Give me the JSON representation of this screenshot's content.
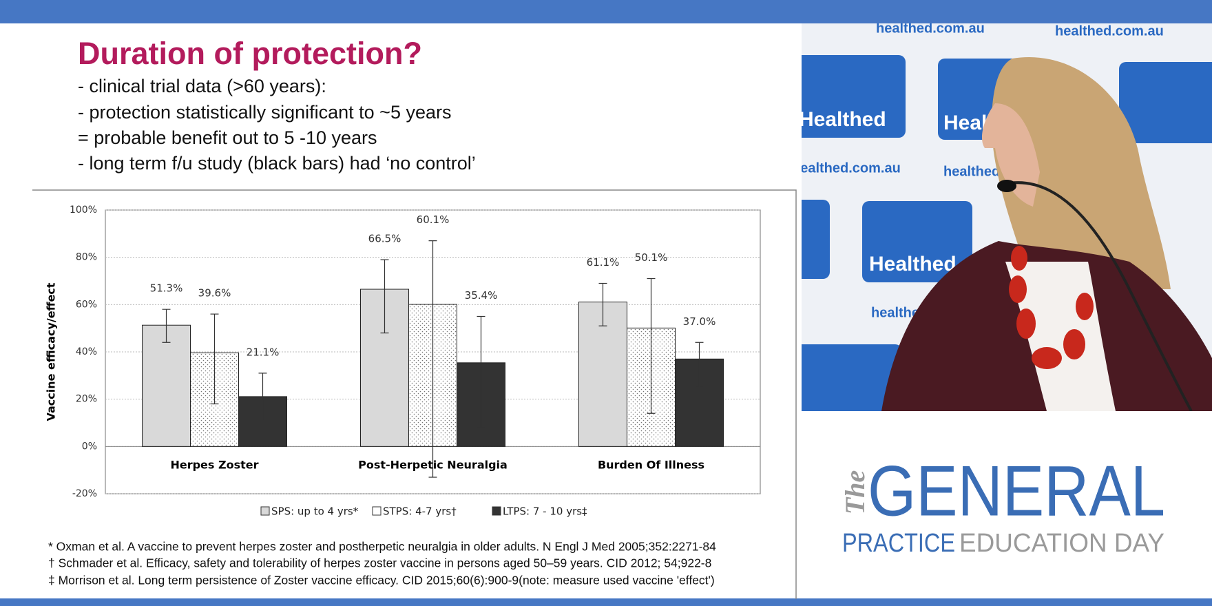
{
  "slide": {
    "title": "Duration of protection?",
    "bullets": [
      "- clinical trial data (>60 years):",
      "- protection statistically significant to ~5 years",
      "= probable benefit out to 5 -10 years",
      "- long term f/u study (black bars) had ‘no control’"
    ],
    "footnotes": [
      "* Oxman et al. A vaccine to prevent herpes zoster and postherpetic neuralgia in older adults. N Engl J Med 2005;352:2271-84",
      "† Schmader et al. Efficacy, safety and tolerability of herpes zoster vaccine in persons aged 50–59 years. CID 2012; 54;922-8",
      "‡ Morrison et al. Long term persistence of Zoster vaccine efficacy. CID 2015;60(6):900-9(note: measure used vaccine 'effect')"
    ]
  },
  "chart_data": {
    "type": "bar",
    "y_label": "Vaccine efficacy/effect",
    "categories": [
      "Herpes Zoster",
      "Post-Herpetic Neuralgia",
      "Burden Of Illness"
    ],
    "series": [
      {
        "name": "SPS: up to 4 yrs*",
        "color": "#d9d9d9",
        "values": [
          51.3,
          66.5,
          61.1
        ],
        "value_labels": [
          "51.3%",
          "66.5%",
          "61.1%"
        ],
        "error_low": [
          44,
          48,
          51
        ],
        "error_high": [
          58,
          79,
          69
        ]
      },
      {
        "name": "STPS: 4-7 yrs†",
        "color": "#ffffff",
        "pattern": "dotted",
        "values": [
          39.6,
          60.1,
          50.1
        ],
        "value_labels": [
          "39.6%",
          "60.1%",
          "50.1%"
        ],
        "error_low": [
          18,
          -13,
          14
        ],
        "error_high": [
          56,
          87,
          71
        ]
      },
      {
        "name": "LTPS: 7 - 10 yrs‡",
        "color": "#333333",
        "values": [
          21.1,
          35.4,
          37.0
        ],
        "value_labels": [
          "21.1%",
          "35.4%",
          "37.0%"
        ],
        "error_low": [
          11,
          8,
          25
        ],
        "error_high": [
          31,
          55,
          44
        ]
      }
    ],
    "ylim": [
      -20,
      100
    ],
    "yticks": [
      {
        "value": -20,
        "label": "-20%"
      },
      {
        "value": 0,
        "label": "0%"
      },
      {
        "value": 20,
        "label": "20%"
      },
      {
        "value": 40,
        "label": "40%"
      },
      {
        "value": 60,
        "label": "60%"
      },
      {
        "value": 80,
        "label": "80%"
      },
      {
        "value": 100,
        "label": "100%"
      }
    ],
    "grid": true
  },
  "backdrop": {
    "site": "healthed.com.au",
    "brand": "Healthed"
  },
  "logo": {
    "the": "The",
    "general": "GENERAL",
    "practice": "PRACTICE",
    "education": "EDUCATION DAY"
  }
}
